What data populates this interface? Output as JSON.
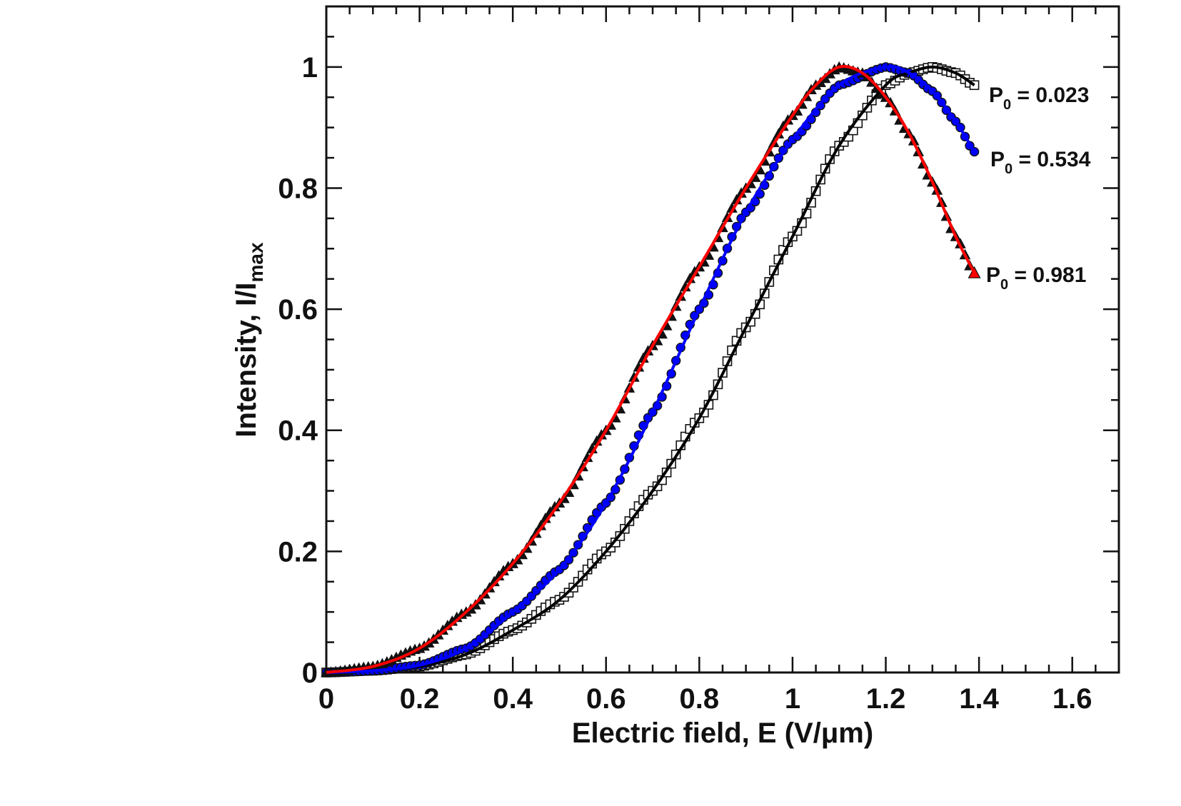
{
  "chart_data": {
    "type": "scatter",
    "xlabel": "Electric field, E (V/μm)",
    "ylabel": {
      "main": "Intensity, I/I",
      "sub": "max"
    },
    "xlim": [
      0,
      1.7
    ],
    "ylim": [
      0,
      1.1
    ],
    "xticks": [
      "0",
      "0.2",
      "0.4",
      "0.6",
      "0.8",
      "1",
      "1.2",
      "1.4",
      "1.6"
    ],
    "yticks": [
      "0",
      "0.2",
      "0.4",
      "0.6",
      "0.8",
      "1"
    ],
    "grid": false,
    "legend": "none",
    "series": [
      {
        "name": "P0 = 0.023",
        "marker": "square-open",
        "fit_color": "#000000",
        "x": [
          0.0,
          0.1,
          0.2,
          0.3,
          0.4,
          0.5,
          0.6,
          0.7,
          0.8,
          0.9,
          1.0,
          1.1,
          1.2,
          1.25,
          1.3,
          1.35,
          1.39
        ],
        "y": [
          0.0,
          0.003,
          0.01,
          0.03,
          0.07,
          0.12,
          0.2,
          0.3,
          0.42,
          0.57,
          0.72,
          0.87,
          0.97,
          0.99,
          1.0,
          0.99,
          0.97
        ]
      },
      {
        "name": "P0 = 0.534",
        "marker": "circle-filled",
        "fit_color": "#0000ff",
        "x": [
          0.0,
          0.1,
          0.2,
          0.3,
          0.4,
          0.5,
          0.6,
          0.7,
          0.8,
          0.9,
          1.0,
          1.1,
          1.2,
          1.25,
          1.3,
          1.35,
          1.39
        ],
        "y": [
          0.0,
          0.003,
          0.012,
          0.04,
          0.1,
          0.17,
          0.28,
          0.43,
          0.6,
          0.76,
          0.88,
          0.97,
          1.0,
          0.99,
          0.96,
          0.91,
          0.86
        ]
      },
      {
        "name": "P0 = 0.981",
        "marker": "triangle-filled",
        "fit_color": "#ff0000",
        "x": [
          0.0,
          0.1,
          0.2,
          0.3,
          0.4,
          0.5,
          0.6,
          0.7,
          0.8,
          0.9,
          1.0,
          1.05,
          1.1,
          1.15,
          1.2,
          1.25,
          1.3,
          1.35,
          1.39
        ],
        "y": [
          0.0,
          0.01,
          0.04,
          0.1,
          0.18,
          0.28,
          0.4,
          0.54,
          0.67,
          0.8,
          0.92,
          0.97,
          1.0,
          0.99,
          0.95,
          0.89,
          0.81,
          0.72,
          0.66
        ]
      }
    ],
    "annotations": [
      {
        "main": "P",
        "sub": "0",
        "rest": " = 0.023"
      },
      {
        "main": "P",
        "sub": "0",
        "rest": " = 0.534"
      },
      {
        "main": "P",
        "sub": "0",
        "rest": " = 0.981"
      }
    ]
  }
}
